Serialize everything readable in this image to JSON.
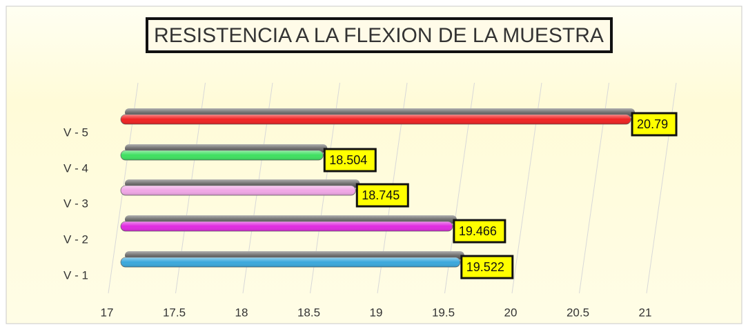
{
  "chart_data": {
    "type": "bar",
    "orientation": "horizontal",
    "style": "3d",
    "title": "RESISTENCIA A LA FLEXION DE LA MUESTRA",
    "categories": [
      "V - 1",
      "V - 2",
      "V - 3",
      "V - 4",
      "V - 5"
    ],
    "values": [
      19.522,
      19.466,
      18.745,
      18.504,
      20.79
    ],
    "colors": [
      "#3aa8dc",
      "#e02ae0",
      "#f0a6e6",
      "#3ee060",
      "#f02222"
    ],
    "xlim": [
      17,
      21
    ],
    "xticks": [
      17,
      17.5,
      18,
      18.5,
      19,
      19.5,
      20,
      20.5,
      21
    ],
    "grid": true
  }
}
